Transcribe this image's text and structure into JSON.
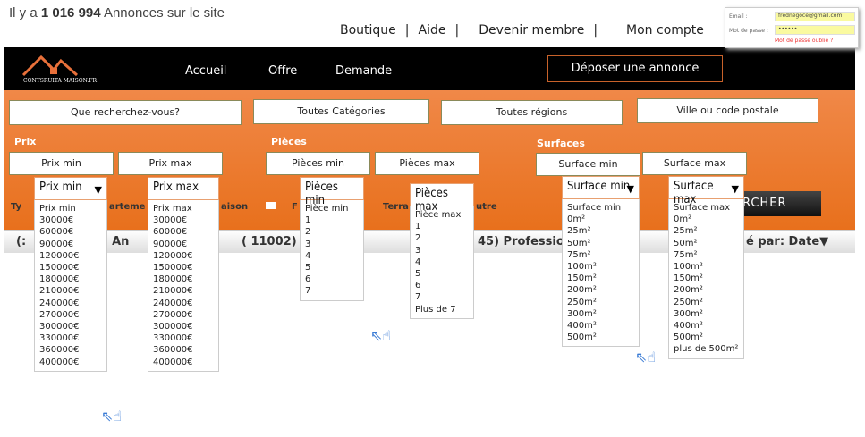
{
  "header": {
    "info_prefix": "Il y a",
    "count": "1 016 994",
    "info_suffix": "Annonces sur le site",
    "links": [
      "Boutique",
      "|",
      "Aide",
      "|",
      "Devenir membre",
      "|",
      "Mon compte"
    ]
  },
  "login": {
    "email_label": "Email :",
    "email_value": "frednegoce@gmail.com",
    "password_label": "Mot de passe :",
    "password_value": "••••••",
    "forgot": "Mot de passe oublié ?"
  },
  "nav": {
    "logo": "CONTSRUITA MAISON.FR",
    "items": [
      "Accueil",
      "Offre",
      "Demande"
    ],
    "deposit": "Déposer une annonce"
  },
  "search": {
    "query_placeholder": "Que recherchez-vous?",
    "category": "Toutes Catégories",
    "region": "Toutes régions",
    "city": "Ville ou code postale",
    "labels": {
      "price": "Prix",
      "rooms": "Pièces",
      "surface": "Surfaces"
    },
    "boxes": {
      "price_min": "Prix min",
      "price_max": "Prix max",
      "rooms_min": "Pièces min",
      "rooms_max": "Pièces max",
      "surface_min": "Surface min",
      "surface_max": "Surface max"
    },
    "type_fragments": [
      "Ty",
      "arteme",
      "aison",
      "F",
      "Terra",
      "utre"
    ],
    "submit": "RCHER"
  },
  "results": {
    "frag1": "(:",
    "frag2": "es An",
    "frag3": "( 11002)",
    "frag4": "45) Professio",
    "sort": "é par:  Date▼"
  },
  "dropdowns": {
    "price_min": {
      "selected": "Prix min",
      "options": [
        "Prix min",
        "30000€",
        "60000€",
        "90000€",
        "120000€",
        "150000€",
        "180000€",
        "210000€",
        "240000€",
        "270000€",
        "300000€",
        "330000€",
        "360000€",
        "400000€"
      ]
    },
    "price_max": {
      "selected": "Prix max",
      "options": [
        "Prix max",
        "30000€",
        "60000€",
        "90000€",
        "120000€",
        "150000€",
        "180000€",
        "210000€",
        "240000€",
        "270000€",
        "300000€",
        "330000€",
        "360000€",
        "400000€"
      ]
    },
    "rooms_min": {
      "selected": "Pièces min",
      "options": [
        "Pièce min",
        "1",
        "2",
        "3",
        "4",
        "5",
        "6",
        "7"
      ]
    },
    "rooms_max": {
      "selected": "Pièces max",
      "options": [
        "Pièce max",
        "1",
        "2",
        "3",
        "4",
        "5",
        "6",
        "7",
        "Plus de 7"
      ]
    },
    "surface_min": {
      "selected": "Surface min",
      "options": [
        "Surface min",
        "0m²",
        "25m²",
        "50m²",
        "75m²",
        "100m²",
        "150m²",
        "200m²",
        "250m²",
        "300m²",
        "400m²",
        "500m²"
      ]
    },
    "surface_max": {
      "selected": "Surface max",
      "options": [
        "Surface max",
        "0m²",
        "25m²",
        "50m²",
        "75m²",
        "100m²",
        "150m²",
        "200m²",
        "250m²",
        "300m²",
        "400m²",
        "500m²",
        "plus de 500m²"
      ]
    }
  },
  "colors": {
    "accent": "#e8701c",
    "navbar": "#000000"
  }
}
